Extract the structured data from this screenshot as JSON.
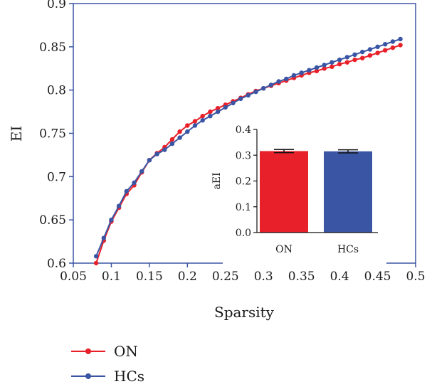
{
  "chart_data": [
    {
      "type": "line",
      "xlabel": "Sparsity",
      "ylabel": "EI",
      "xlim": [
        0.05,
        0.5
      ],
      "ylim": [
        0.6,
        0.9
      ],
      "x_ticks": [
        "0.05",
        "0.1",
        "0.15",
        "0.2",
        "0.25",
        "0.3",
        "0.35",
        "0.4",
        "0.45",
        "0.5"
      ],
      "y_ticks": [
        "0.6",
        "0.65",
        "0.7",
        "0.75",
        "0.8",
        "0.85",
        "0.9"
      ],
      "legend_position": "bottom-left",
      "x": [
        0.08,
        0.09,
        0.1,
        0.11,
        0.12,
        0.13,
        0.14,
        0.15,
        0.16,
        0.17,
        0.18,
        0.19,
        0.2,
        0.21,
        0.22,
        0.23,
        0.24,
        0.25,
        0.26,
        0.27,
        0.28,
        0.29,
        0.3,
        0.31,
        0.32,
        0.33,
        0.34,
        0.35,
        0.36,
        0.37,
        0.38,
        0.39,
        0.4,
        0.41,
        0.42,
        0.43,
        0.44,
        0.45,
        0.46,
        0.47,
        0.48
      ],
      "series": [
        {
          "name": "ON",
          "color": "#e8202a",
          "values": [
            0.6,
            0.626,
            0.648,
            0.664,
            0.68,
            0.69,
            0.705,
            0.719,
            0.727,
            0.734,
            0.743,
            0.752,
            0.759,
            0.764,
            0.77,
            0.775,
            0.779,
            0.783,
            0.787,
            0.791,
            0.795,
            0.799,
            0.802,
            0.805,
            0.808,
            0.811,
            0.814,
            0.817,
            0.82,
            0.822,
            0.825,
            0.827,
            0.83,
            0.832,
            0.835,
            0.837,
            0.84,
            0.843,
            0.846,
            0.849,
            0.852
          ]
        },
        {
          "name": "HCs",
          "color": "#3a55a4",
          "values": [
            0.608,
            0.629,
            0.65,
            0.666,
            0.683,
            0.693,
            0.706,
            0.719,
            0.726,
            0.731,
            0.738,
            0.745,
            0.752,
            0.759,
            0.765,
            0.77,
            0.775,
            0.78,
            0.785,
            0.79,
            0.794,
            0.798,
            0.802,
            0.806,
            0.81,
            0.813,
            0.817,
            0.82,
            0.823,
            0.826,
            0.829,
            0.832,
            0.835,
            0.838,
            0.841,
            0.844,
            0.847,
            0.85,
            0.853,
            0.856,
            0.859
          ]
        }
      ]
    },
    {
      "type": "bar",
      "ylabel": "aEI",
      "categories": [
        "ON",
        "HCs"
      ],
      "ylim": [
        0.0,
        0.4
      ],
      "y_ticks": [
        "0.0",
        "0.1",
        "0.2",
        "0.3",
        "0.4"
      ],
      "values": [
        0.316,
        0.315
      ],
      "error": [
        0.006,
        0.006
      ],
      "colors": [
        "#e8202a",
        "#3a55a4"
      ]
    }
  ]
}
